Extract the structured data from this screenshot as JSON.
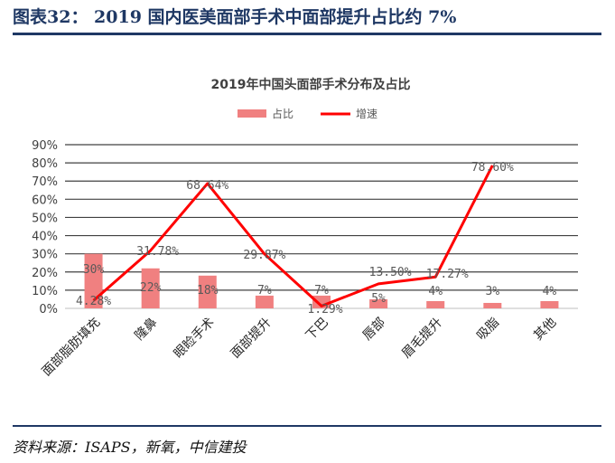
{
  "figure_title": "图表32： 2019 国内医美面部手术中面部提升占比约 7%",
  "source": "资料来源：ISAPS，新氧，中信建投",
  "chart_data": {
    "type": "bar",
    "title": "2019年中国头面部手术分布及占比",
    "categories": [
      "面部脂肪填充",
      "隆鼻",
      "眼睑手术",
      "面部提升",
      "下巴",
      "唇部",
      "眉毛提升",
      "吸脂",
      "其他"
    ],
    "series": [
      {
        "name": "占比",
        "type": "bar",
        "color": "#f08080",
        "values": [
          30,
          22,
          18,
          7,
          7,
          5,
          4,
          3,
          4
        ],
        "labels": [
          "30%",
          "22%",
          "18%",
          "7%",
          "7%",
          "5%",
          "4%",
          "3%",
          "4%"
        ]
      },
      {
        "name": "增速",
        "type": "line",
        "color": "#ff0000",
        "values": [
          4.28,
          31.78,
          68.64,
          29.87,
          1.29,
          13.5,
          17.27,
          78.6,
          null
        ],
        "labels": [
          "4.28%",
          "31.78%",
          "68.64%",
          "29.87%",
          "1.29%",
          "13.50%",
          "17.27%",
          "78.60%",
          ""
        ]
      }
    ],
    "yticks": [
      "0%",
      "10%",
      "20%",
      "30%",
      "40%",
      "50%",
      "60%",
      "70%",
      "80%",
      "90%"
    ],
    "ylim": [
      0,
      90
    ],
    "grid": true,
    "legend": "top-center"
  }
}
